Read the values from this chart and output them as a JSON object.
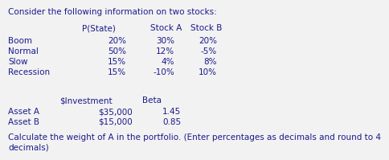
{
  "title": "Consider the following information on two stocks:",
  "table1_headers": [
    "P(State)",
    "Stock A",
    "Stock B"
  ],
  "table1_rows": [
    [
      "Boom",
      "20%",
      "30%",
      "20%"
    ],
    [
      "Normal",
      "50%",
      "12%",
      "-5%"
    ],
    [
      "Slow",
      "15%",
      "4%",
      "8%"
    ],
    [
      "Recession",
      "15%",
      "-10%",
      "10%"
    ]
  ],
  "table2_headers": [
    "$Investment",
    "Beta"
  ],
  "table2_rows": [
    [
      "Asset A",
      "$35,000",
      "1.45"
    ],
    [
      "Asset B",
      "$15,000",
      "0.85"
    ]
  ],
  "question_line1": "Calculate the weight of A in the portfolio. (Enter percentages as decimals and round to 4",
  "question_line2": "decimals)",
  "bg_color": "#f2f2f2",
  "text_color": "#1a1a8c",
  "font_size": 7.5
}
